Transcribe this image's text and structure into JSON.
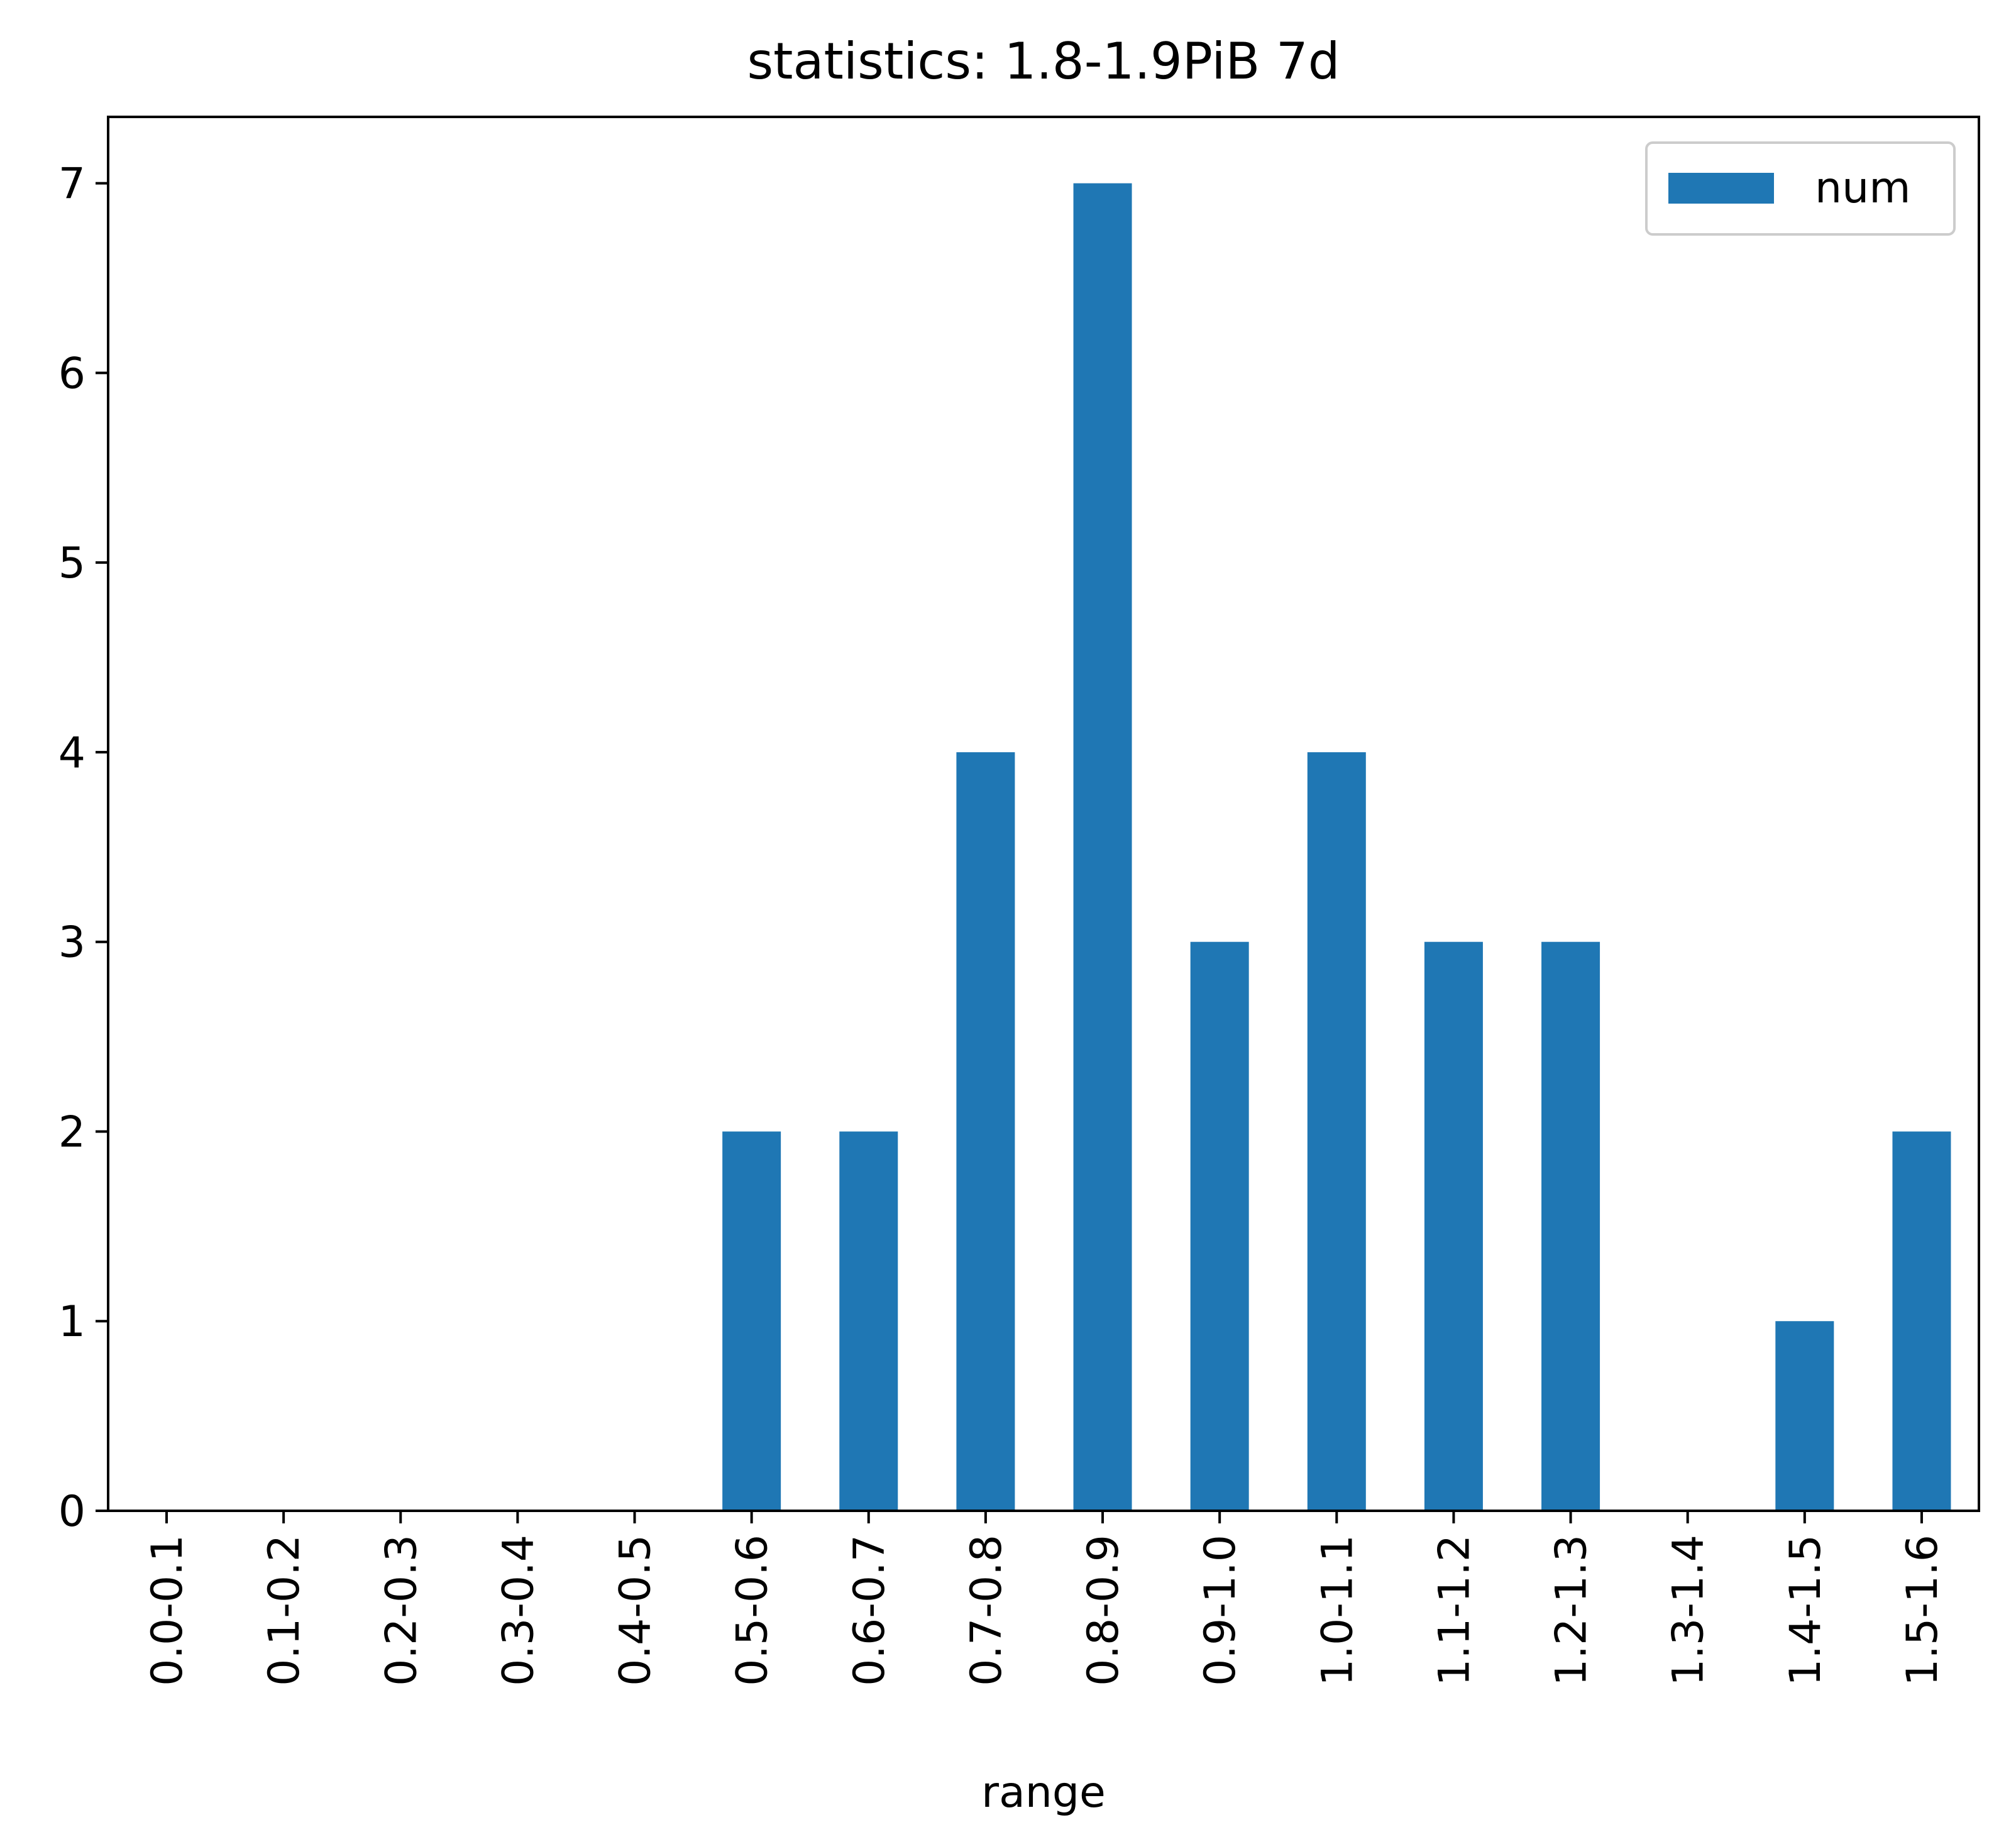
{
  "chart_data": {
    "type": "bar",
    "title": "statistics: 1.8-1.9PiB 7d",
    "xlabel": "range",
    "ylabel": "",
    "categories": [
      "0.0-0.1",
      "0.1-0.2",
      "0.2-0.3",
      "0.3-0.4",
      "0.4-0.5",
      "0.5-0.6",
      "0.6-0.7",
      "0.7-0.8",
      "0.8-0.9",
      "0.9-1.0",
      "1.0-1.1",
      "1.1-1.2",
      "1.2-1.3",
      "1.3-1.4",
      "1.4-1.5",
      "1.5-1.6"
    ],
    "series": [
      {
        "name": "num",
        "values": [
          0,
          0,
          0,
          0,
          0,
          2,
          2,
          4,
          7,
          3,
          4,
          3,
          3,
          0,
          1,
          2
        ],
        "color": "#1f77b4"
      }
    ],
    "yticks": [
      "0",
      "1",
      "2",
      "3",
      "4",
      "5",
      "6",
      "7"
    ],
    "ylim": [
      0,
      7.35
    ],
    "grid": false,
    "legend_position": "top-right"
  }
}
